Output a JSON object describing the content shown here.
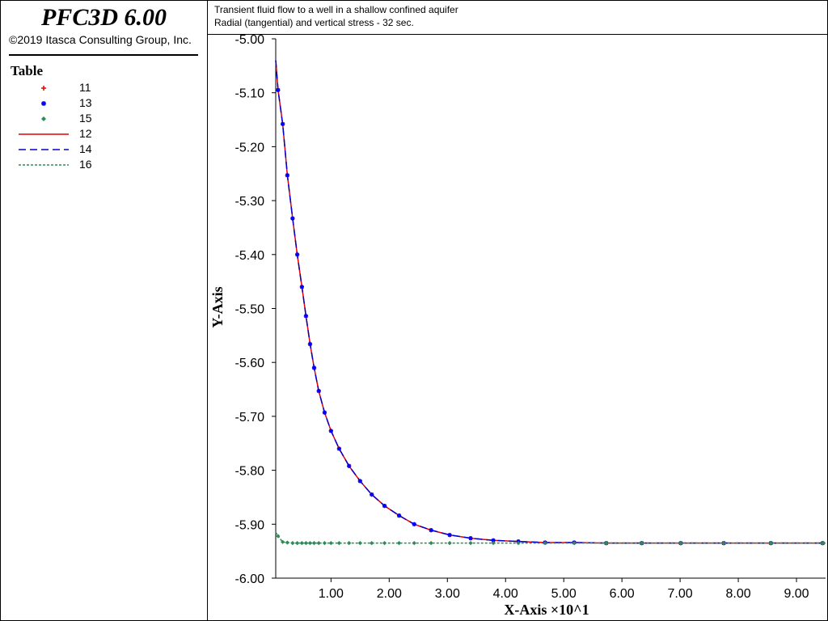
{
  "app": {
    "title": "PFC3D 6.00",
    "copyright": "©2019 Itasca Consulting Group, Inc."
  },
  "legend": {
    "title": "Table",
    "items": [
      {
        "label": "11",
        "kind": "marker",
        "marker": "plus",
        "color": "#e60000"
      },
      {
        "label": "13",
        "kind": "marker",
        "marker": "asterisk",
        "color": "#0000ff"
      },
      {
        "label": "15",
        "kind": "marker",
        "marker": "diamond",
        "color": "#2e8b57"
      },
      {
        "label": "12",
        "kind": "line",
        "dash": "solid",
        "color": "#e60000"
      },
      {
        "label": "14",
        "kind": "line",
        "dash": "dashed",
        "color": "#0000cd"
      },
      {
        "label": "16",
        "kind": "line",
        "dash": "dotted",
        "color": "#2e8b57"
      }
    ]
  },
  "chart_data": {
    "type": "line",
    "title": "Transient fluid flow to a well in a shallow confined aquifer",
    "subtitle": "Radial (tangential) and vertical stress - 32 sec.",
    "xlabel": "X-Axis ×10^1",
    "ylabel": "Y-Axis",
    "xlim": [
      0.05,
      9.5
    ],
    "ylim": [
      -6.0,
      -5.0
    ],
    "xticks": [
      1.0,
      2.0,
      3.0,
      4.0,
      5.0,
      6.0,
      7.0,
      8.0,
      9.0
    ],
    "xtick_labels": [
      "1.00",
      "2.00",
      "3.00",
      "4.00",
      "5.00",
      "6.00",
      "7.00",
      "8.00",
      "9.00"
    ],
    "yticks": [
      -5.0,
      -5.1,
      -5.2,
      -5.3,
      -5.4,
      -5.5,
      -5.6,
      -5.7,
      -5.8,
      -5.9,
      -6.0
    ],
    "ytick_labels": [
      "-5.00",
      "-5.10",
      "-5.20",
      "-5.30",
      "-5.40",
      "-5.50",
      "-5.60",
      "-5.70",
      "-5.80",
      "-5.90",
      "-6.00"
    ],
    "grid": false,
    "series": [
      {
        "name": "11",
        "style": "markers",
        "marker": "plus",
        "color": "#e60000",
        "x": [
          0.09,
          0.17,
          0.25,
          0.34,
          0.42,
          0.5,
          0.57,
          0.64,
          0.71,
          0.79,
          0.89,
          1.0,
          1.14,
          1.31,
          1.5,
          1.7,
          1.92,
          2.17,
          2.43,
          2.72,
          3.04,
          3.4,
          3.79,
          4.22,
          4.68,
          5.18,
          5.73,
          6.34,
          7.01,
          7.75,
          8.56,
          9.45
        ],
        "y": [
          -5.095,
          -5.158,
          -5.253,
          -5.333,
          -5.4,
          -5.46,
          -5.514,
          -5.566,
          -5.61,
          -5.653,
          -5.693,
          -5.727,
          -5.76,
          -5.792,
          -5.82,
          -5.845,
          -5.866,
          -5.884,
          -5.9,
          -5.911,
          -5.92,
          -5.926,
          -5.93,
          -5.932,
          -5.934,
          -5.934,
          -5.935,
          -5.935,
          -5.935,
          -5.935,
          -5.935,
          -5.935
        ]
      },
      {
        "name": "13",
        "style": "markers",
        "marker": "asterisk",
        "color": "#0000ff",
        "x": [
          0.09,
          0.17,
          0.25,
          0.34,
          0.42,
          0.5,
          0.57,
          0.64,
          0.71,
          0.79,
          0.89,
          1.0,
          1.14,
          1.31,
          1.5,
          1.7,
          1.92,
          2.17,
          2.43,
          2.72,
          3.04,
          3.4,
          3.79,
          4.22,
          4.68,
          5.18,
          5.73,
          6.34,
          7.01,
          7.75,
          8.56,
          9.45
        ],
        "y": [
          -5.095,
          -5.158,
          -5.253,
          -5.333,
          -5.4,
          -5.46,
          -5.514,
          -5.566,
          -5.61,
          -5.653,
          -5.693,
          -5.727,
          -5.76,
          -5.792,
          -5.82,
          -5.845,
          -5.866,
          -5.884,
          -5.9,
          -5.911,
          -5.92,
          -5.926,
          -5.93,
          -5.932,
          -5.934,
          -5.934,
          -5.935,
          -5.935,
          -5.935,
          -5.935,
          -5.935,
          -5.935
        ]
      },
      {
        "name": "15",
        "style": "markers",
        "marker": "diamond",
        "color": "#2e8b57",
        "x": [
          0.09,
          0.17,
          0.25,
          0.34,
          0.42,
          0.5,
          0.57,
          0.64,
          0.71,
          0.79,
          0.89,
          1.0,
          1.14,
          1.31,
          1.5,
          1.7,
          1.92,
          2.17,
          2.43,
          2.72,
          3.04,
          3.4,
          3.79,
          4.22,
          4.68,
          5.18,
          5.73,
          6.34,
          7.01,
          7.75,
          8.56,
          9.45
        ],
        "y": [
          -5.922,
          -5.933,
          -5.934,
          -5.935,
          -5.935,
          -5.935,
          -5.935,
          -5.935,
          -5.935,
          -5.935,
          -5.935,
          -5.935,
          -5.935,
          -5.935,
          -5.935,
          -5.935,
          -5.935,
          -5.935,
          -5.935,
          -5.935,
          -5.935,
          -5.935,
          -5.935,
          -5.935,
          -5.935,
          -5.935,
          -5.935,
          -5.935,
          -5.935,
          -5.935,
          -5.935,
          -5.935
        ]
      },
      {
        "name": "12",
        "style": "line",
        "dash": "solid",
        "color": "#e60000",
        "x": [
          0.05,
          0.09,
          0.17,
          0.25,
          0.34,
          0.42,
          0.5,
          0.57,
          0.64,
          0.71,
          0.79,
          0.89,
          1.0,
          1.14,
          1.31,
          1.5,
          1.7,
          1.92,
          2.17,
          2.43,
          2.72,
          3.04,
          3.4,
          3.79,
          4.22,
          4.68,
          5.18,
          5.73,
          6.34,
          7.01,
          7.75,
          8.56,
          9.45
        ],
        "y": [
          -5.04,
          -5.095,
          -5.158,
          -5.253,
          -5.333,
          -5.4,
          -5.46,
          -5.514,
          -5.566,
          -5.61,
          -5.653,
          -5.693,
          -5.727,
          -5.76,
          -5.792,
          -5.82,
          -5.845,
          -5.866,
          -5.884,
          -5.9,
          -5.911,
          -5.92,
          -5.926,
          -5.93,
          -5.932,
          -5.934,
          -5.934,
          -5.935,
          -5.935,
          -5.935,
          -5.935,
          -5.935,
          -5.935
        ]
      },
      {
        "name": "14",
        "style": "line",
        "dash": "dashed",
        "color": "#0000cd",
        "x": [
          0.05,
          0.09,
          0.17,
          0.25,
          0.34,
          0.42,
          0.5,
          0.57,
          0.64,
          0.71,
          0.79,
          0.89,
          1.0,
          1.14,
          1.31,
          1.5,
          1.7,
          1.92,
          2.17,
          2.43,
          2.72,
          3.04,
          3.4,
          3.79,
          4.22,
          4.68,
          5.18,
          5.73,
          6.34,
          7.01,
          7.75,
          8.56,
          9.45
        ],
        "y": [
          -5.04,
          -5.095,
          -5.158,
          -5.253,
          -5.333,
          -5.4,
          -5.46,
          -5.514,
          -5.566,
          -5.61,
          -5.653,
          -5.693,
          -5.727,
          -5.76,
          -5.792,
          -5.82,
          -5.845,
          -5.866,
          -5.884,
          -5.9,
          -5.911,
          -5.92,
          -5.926,
          -5.93,
          -5.932,
          -5.934,
          -5.934,
          -5.935,
          -5.935,
          -5.935,
          -5.935,
          -5.935,
          -5.935
        ]
      },
      {
        "name": "16",
        "style": "line",
        "dash": "dotted",
        "color": "#2e8b57",
        "x": [
          0.05,
          0.09,
          0.17,
          0.25,
          0.34,
          0.5,
          1.0,
          2.0,
          3.0,
          4.0,
          5.0,
          6.0,
          7.0,
          8.0,
          9.0,
          9.5
        ],
        "y": [
          -5.915,
          -5.922,
          -5.933,
          -5.934,
          -5.935,
          -5.935,
          -5.935,
          -5.935,
          -5.935,
          -5.935,
          -5.935,
          -5.935,
          -5.935,
          -5.935,
          -5.935,
          -5.935
        ]
      }
    ]
  }
}
